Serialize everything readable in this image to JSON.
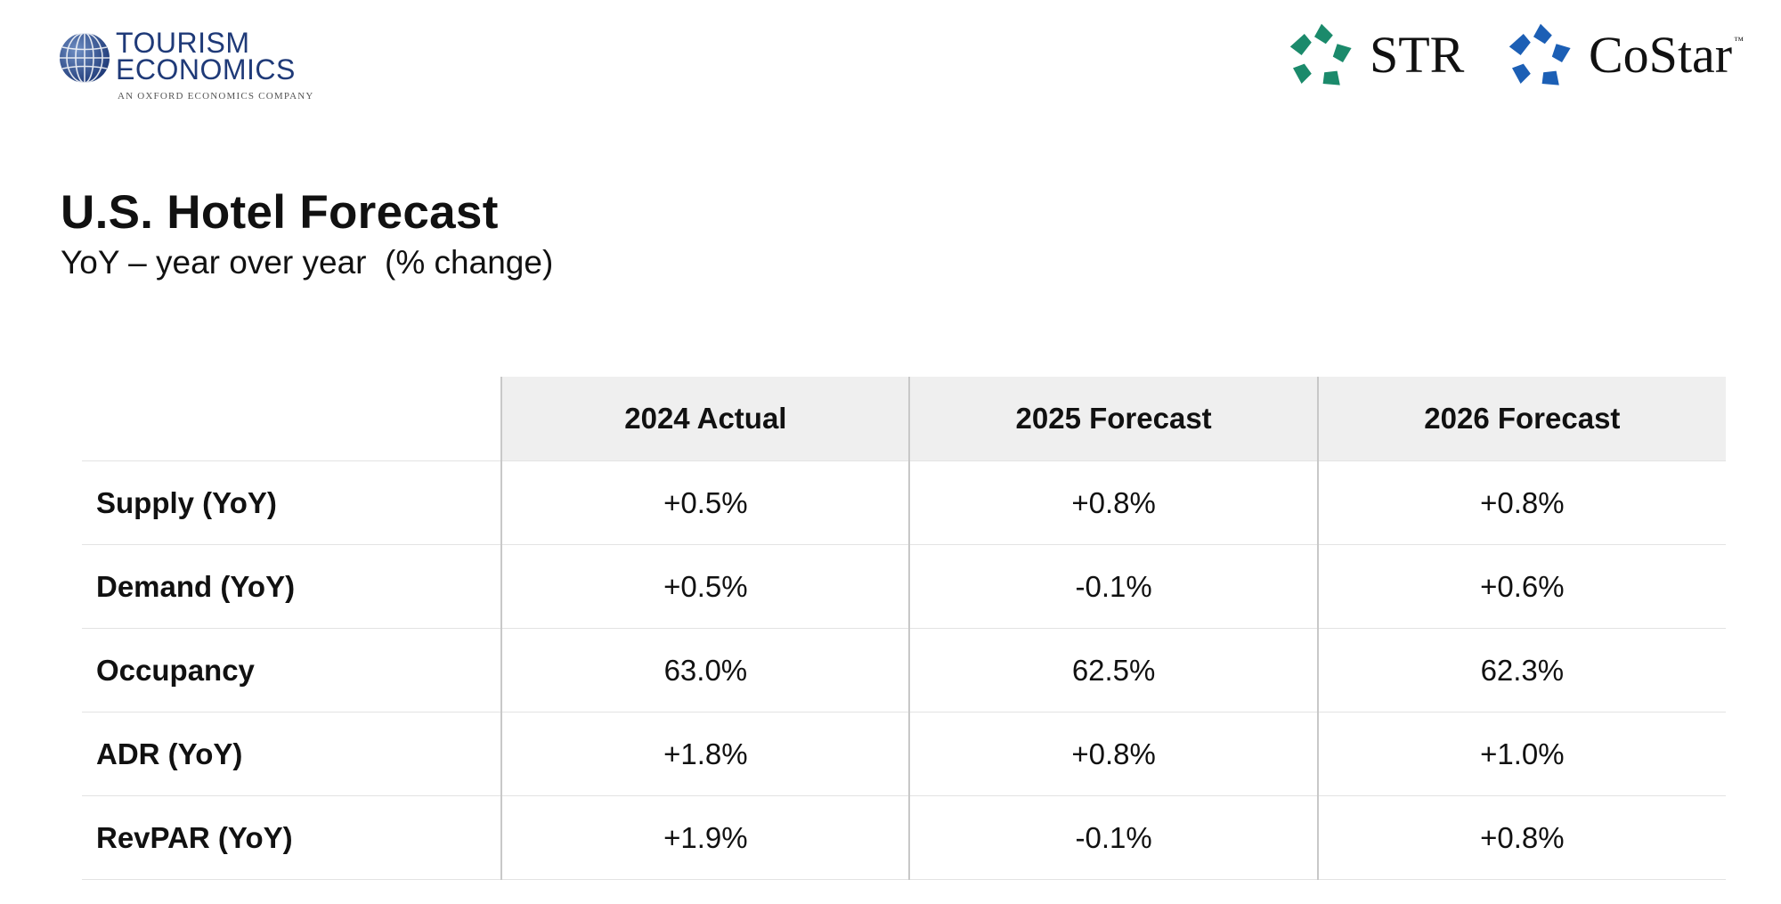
{
  "logos": {
    "tourism_economics": {
      "line1": "TOURISM",
      "line2": "ECONOMICS",
      "tagline": "AN OXFORD ECONOMICS COMPANY",
      "color": "#1f3a78"
    },
    "str": {
      "text": "STR",
      "color": "#1b8a6b"
    },
    "costar": {
      "text": "CoStar",
      "trademark": "™",
      "color": "#1c5fb5"
    }
  },
  "title": "U.S. Hotel Forecast",
  "subtitle": "YoY – year over year  (% change)",
  "table": {
    "columns": [
      "2024 Actual",
      "2025 Forecast",
      "2026 Forecast"
    ],
    "rows": [
      {
        "label": "Supply (YoY)",
        "values": [
          "+0.5%",
          "+0.8%",
          "+0.8%"
        ]
      },
      {
        "label": "Demand (YoY)",
        "values": [
          "+0.5%",
          "-0.1%",
          "+0.6%"
        ]
      },
      {
        "label": "Occupancy",
        "values": [
          "63.0%",
          "62.5%",
          "62.3%"
        ]
      },
      {
        "label": "ADR (YoY)",
        "values": [
          "+1.8%",
          "+0.8%",
          "+1.0%"
        ]
      },
      {
        "label": "RevPAR (YoY)",
        "values": [
          "+1.9%",
          "-0.1%",
          "+0.8%"
        ]
      }
    ],
    "header_bg": "#efefef"
  }
}
